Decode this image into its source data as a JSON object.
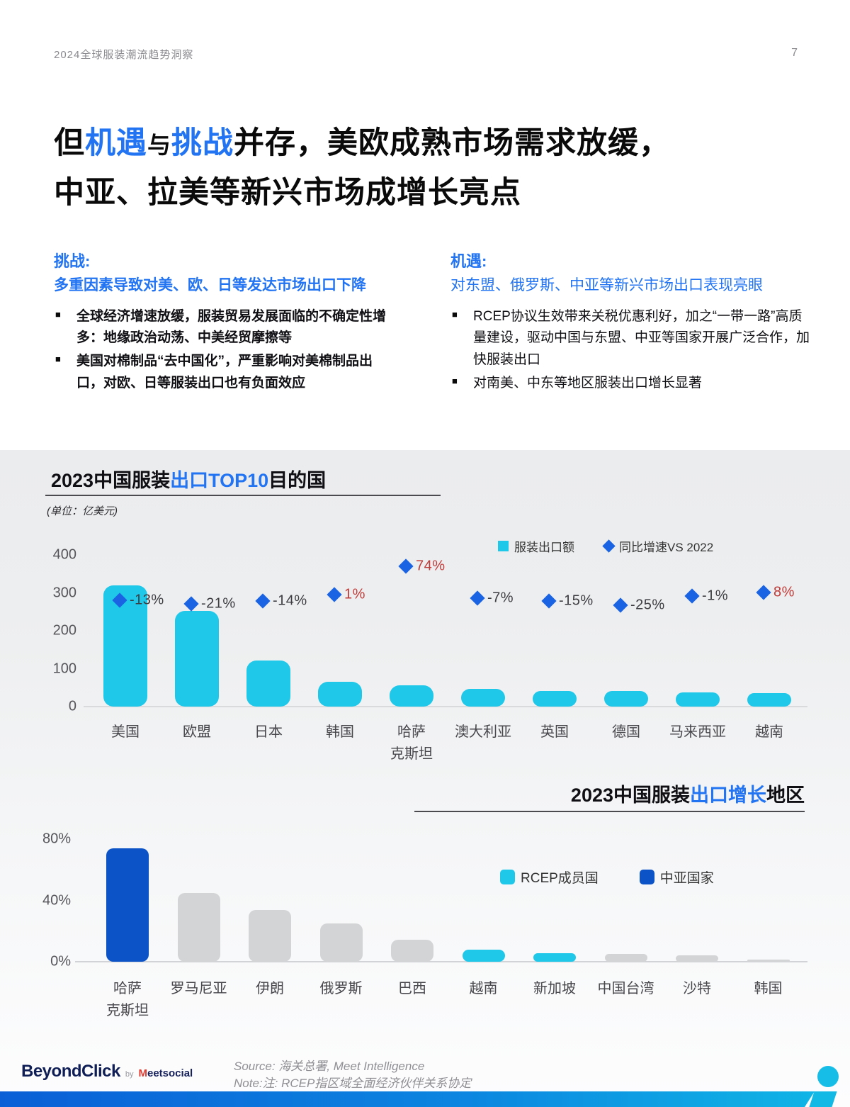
{
  "page": {
    "header_left": "2024全球服装潮流趋势洞察",
    "page_number": "7"
  },
  "title": {
    "line1": [
      {
        "text": "但",
        "accent": false,
        "small": false
      },
      {
        "text": "机遇",
        "accent": true,
        "small": false
      },
      {
        "text": "与",
        "accent": false,
        "small": true
      },
      {
        "text": "挑战",
        "accent": true,
        "small": false
      },
      {
        "text": "并存，美欧成熟市场需求放缓，",
        "accent": false,
        "small": false
      }
    ],
    "line2": "中亚、拉美等新兴市场成增长亮点"
  },
  "challenge": {
    "label": "挑战:",
    "subtitle": "多重因素导致对美、欧、日等发达市场出口下降",
    "bullets": [
      "全球经济增速放缓，服装贸易发展面临的不确定性增多：地缘政治动荡、中美经贸摩擦等",
      "美国对棉制品“去中国化”，严重影响对美棉制品出口，对欧、日等服装出口也有负面效应"
    ]
  },
  "opportunity": {
    "label": "机遇:",
    "subtitle": "对东盟、俄罗斯、中亚等新兴市场出口表现亮眼",
    "bullets": [
      "RCEP协议生效带来关税优惠利好，加之“一带一路”高质量建设，驱动中国与东盟、中亚等国家开展广泛合作，加快服装出口",
      "对南美、中东等地区服装出口增长显著"
    ]
  },
  "chart_data": [
    {
      "type": "bar",
      "title_parts": {
        "prefix": "2023中国服装",
        "highlight": "出口TOP10",
        "suffix": "目的国"
      },
      "unit_note": "(单位：亿美元)",
      "legend": [
        {
          "label": "服装出口额",
          "marker": "square",
          "color": "#1fc7e9"
        },
        {
          "label": "同比增速VS 2022",
          "marker": "diamond",
          "color": "#1a63e2"
        }
      ],
      "categories": [
        "美国",
        "欧盟",
        "日本",
        "韩国",
        "哈萨克斯坦",
        "澳大利亚",
        "英国",
        "德国",
        "马来西亚",
        "越南"
      ],
      "category_display": [
        "美国",
        "欧盟",
        "日本",
        "韩国",
        "哈萨\n克斯坦",
        "澳大利亚",
        "英国",
        "德国",
        "马来西亚",
        "越南"
      ],
      "values": [
        320,
        252,
        121,
        65,
        57,
        46,
        42,
        41,
        38,
        35
      ],
      "growth_labels": [
        "-13%",
        "-21%",
        "-14%",
        "1%",
        "74%",
        "-7%",
        "-15%",
        "-25%",
        "-1%",
        "8%"
      ],
      "growth_pct": [
        -13,
        -21,
        -14,
        1,
        74,
        -7,
        -15,
        -25,
        -1,
        8
      ],
      "yticks": [
        "0",
        "100",
        "200",
        "300",
        "400"
      ],
      "ylim": [
        0,
        400
      ],
      "ylabel": "亿美元",
      "grid": false,
      "legend_position": "top-right"
    },
    {
      "type": "bar",
      "title_parts": {
        "prefix": "2023中国服装",
        "highlight": "出口增长",
        "suffix": "地区"
      },
      "legend": [
        {
          "label": "RCEP成员国",
          "color": "#1fc7e9"
        },
        {
          "label": "中亚国家",
          "color": "#0b53c6"
        }
      ],
      "categories": [
        "哈萨克斯坦",
        "罗马尼亚",
        "伊朗",
        "俄罗斯",
        "巴西",
        "越南",
        "新加坡",
        "中国台湾",
        "沙特",
        "韩国"
      ],
      "category_display": [
        "哈萨\n克斯坦",
        "罗马尼亚",
        "伊朗",
        "俄罗斯",
        "巴西",
        "越南",
        "新加坡",
        "中国台湾",
        "沙特",
        "韩国"
      ],
      "values": [
        74,
        45,
        34,
        25,
        14.5,
        8,
        5.5,
        5,
        4,
        1.5
      ],
      "groups": [
        "central_asia",
        "other",
        "other",
        "other",
        "other",
        "rcep",
        "rcep",
        "other",
        "other",
        "other"
      ],
      "yticks": [
        "0%",
        "40%",
        "80%"
      ],
      "ylim": [
        0,
        80
      ],
      "grid": false,
      "legend_position": "center-right"
    }
  ],
  "footer": {
    "source": "Source: 海关总署, Meet Intelligence",
    "note": "Note:注: RCEP指区域全面经济伙伴关系协定",
    "logo": {
      "brand": "BeyondClick",
      "by": "by",
      "sub_first": "M",
      "sub_rest": "eetsocial"
    }
  },
  "colors": {
    "accent_blue": "#2374f2",
    "bar_cyan": "#1fc7e9",
    "bar_dark_blue": "#0b53c6",
    "bar_gray": "#d3d4d6",
    "diamond_blue": "#1a63e2",
    "growth_positive_red": "#c03a38",
    "growth_negative_dark": "#3c3c41",
    "footer_bar_left": "#0a5fd6",
    "footer_bar_right": "#10b9e6"
  }
}
